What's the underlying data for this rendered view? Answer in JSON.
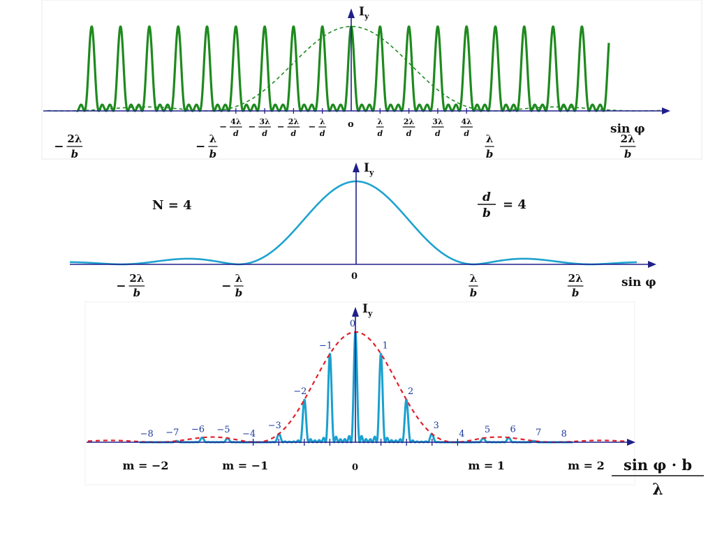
{
  "colors": {
    "axis": "#1f1f8a",
    "panel1_curve": "#1e8a1e",
    "panel1_envelope": "#1e8a1e",
    "panel2_curve": "#1ea2cf",
    "panel3_curve": "#1aa0cf",
    "panel3_envelope": "#e0202a",
    "panel3_order_labels": "#1a3aa0",
    "text": "#111111"
  },
  "panel1": {
    "y_axis_label": "I",
    "y_axis_sub": "y",
    "x_axis_label": "sin φ",
    "origin_label": "o",
    "inner_ticks": [
      {
        "sign": "−",
        "num": "4λ",
        "den": "d"
      },
      {
        "sign": "−",
        "num": "3λ",
        "den": "d"
      },
      {
        "sign": "−",
        "num": "2λ",
        "den": "d"
      },
      {
        "sign": "−",
        "num": "λ",
        "den": "d"
      },
      {
        "sign": "",
        "num": "λ",
        "den": "d"
      },
      {
        "sign": "",
        "num": "2λ",
        "den": "d"
      },
      {
        "sign": "",
        "num": "3λ",
        "den": "d"
      },
      {
        "sign": "",
        "num": "4λ",
        "den": "d"
      }
    ],
    "outer_ticks": [
      {
        "sign": "−",
        "num": "2λ",
        "den": "b"
      },
      {
        "sign": "−",
        "num": "λ",
        "den": "b"
      },
      {
        "sign": "",
        "num": "λ",
        "den": "b"
      },
      {
        "sign": "",
        "num": "2λ",
        "den": "b"
      }
    ]
  },
  "panel2": {
    "y_axis_label": "I",
    "y_axis_sub": "y",
    "x_axis_label": "sin φ",
    "origin_label": "0",
    "n_label": "N = 4",
    "ratio_num": "d",
    "ratio_den": "b",
    "ratio_rhs": "= 4",
    "ticks": [
      {
        "sign": "−",
        "num": "2λ",
        "den": "b"
      },
      {
        "sign": "−",
        "num": "λ",
        "den": "b"
      },
      {
        "sign": "",
        "num": "λ",
        "den": "b"
      },
      {
        "sign": "",
        "num": "2λ",
        "den": "b"
      }
    ]
  },
  "panel3": {
    "y_axis_label": "I",
    "y_axis_sub": "y",
    "origin_label": "0",
    "x_axis_num": "sin φ · b",
    "x_axis_den": "λ",
    "order_labels": [
      "0",
      "1",
      "−1",
      "2",
      "−2",
      "3",
      "−3",
      "4",
      "−4",
      "5",
      "−5",
      "6",
      "−6",
      "7",
      "−7",
      "8",
      "−8"
    ],
    "m_labels": [
      "m = −2",
      "m = −1",
      "m = 1",
      "m = 2"
    ]
  }
}
